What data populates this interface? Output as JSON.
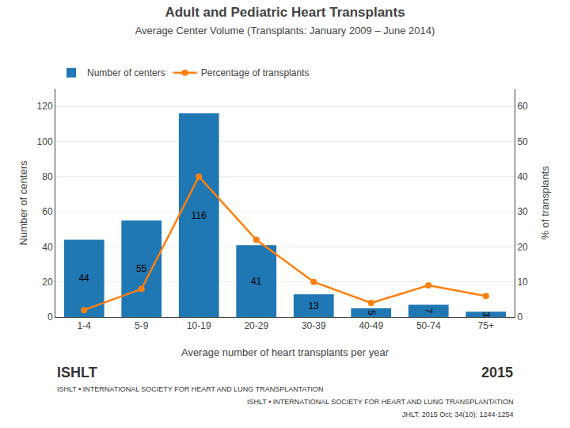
{
  "chart_data": {
    "type": "bar",
    "title": "Adult and Pediatric Heart Transplants",
    "subtitle": "Average Center Volume (Transplants: January 2009 – June 2014)",
    "xlabel": "Average number of heart transplants per year",
    "ylabel": "Number of centers",
    "y2label": "% of transplants",
    "categories": [
      "1-4",
      "5-9",
      "10-19",
      "20-29",
      "30-39",
      "40-49",
      "50-74",
      "75+"
    ],
    "series": [
      {
        "name": "Number of centers",
        "type": "bar",
        "values": [
          44,
          55,
          116,
          41,
          13,
          5,
          7,
          3
        ],
        "data_labels": true
      },
      {
        "name": "Percentage of transplants",
        "type": "line",
        "axis": "y2",
        "marker": "circle",
        "values": [
          2,
          8,
          40,
          22,
          10,
          4,
          9,
          6
        ]
      }
    ],
    "ylim": [
      0,
      130
    ],
    "yticks": [
      0,
      20,
      40,
      60,
      80,
      100,
      120
    ],
    "y2lim": [
      0,
      65
    ],
    "y2ticks": [
      0,
      10,
      20,
      30,
      40,
      50,
      60
    ],
    "grid": true,
    "legend": "upper left",
    "annotations": [
      "ISHLT",
      "ISHLT • INTERNATIONAL SOCIETY FOR HEART AND LUNG TRANSPLANTATION",
      "2015",
      "ISHLT • INTERNATIONAL SOCIETY FOR HEART AND LUNG TRANSPLANTATION",
      "JHLT. 2015 Oct; 34(10): 1244-1254"
    ]
  }
}
